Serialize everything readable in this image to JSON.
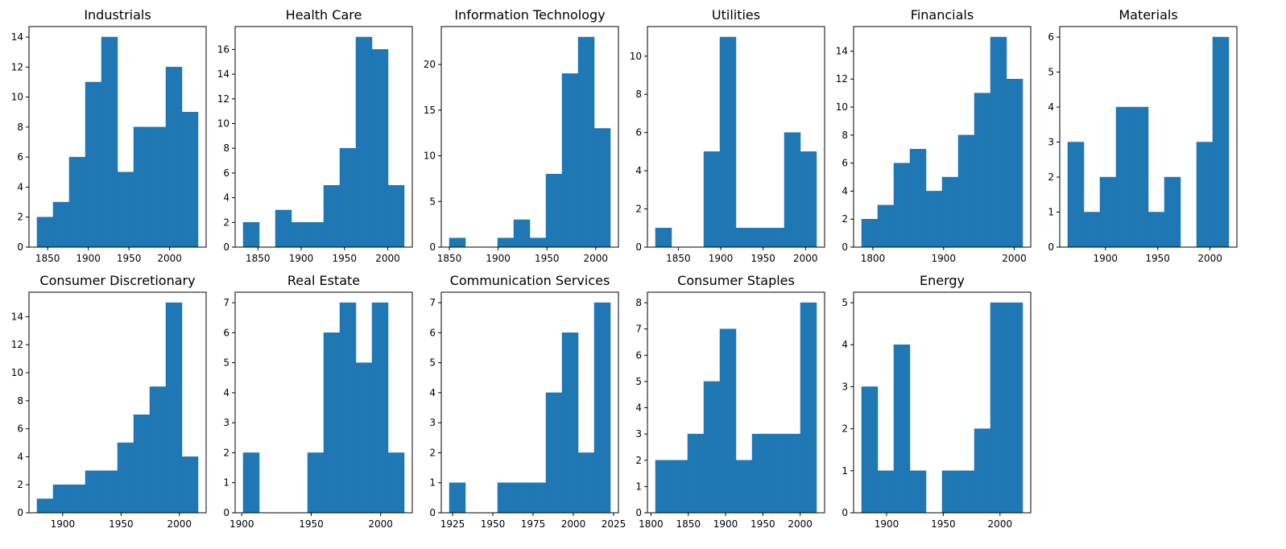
{
  "chart_data": [
    {
      "type": "bar",
      "title": "Industrials",
      "xlabel": "",
      "ylabel": "",
      "color": "#1f77b4",
      "bin_edges": [
        1837,
        1856.8,
        1876.6,
        1896.4,
        1916.2,
        1936,
        1955.8,
        1975.6,
        1995.4,
        2015.2,
        2035
      ],
      "values": [
        2,
        3,
        6,
        11,
        14,
        5,
        8,
        8,
        12,
        9
      ],
      "xlim": [
        1827.1,
        2044.9
      ],
      "ylim": [
        0,
        14.7
      ],
      "xticks": [
        1850,
        1900,
        1950,
        2000
      ],
      "yticks": [
        0,
        2,
        4,
        6,
        8,
        10,
        12,
        14
      ]
    },
    {
      "type": "bar",
      "title": "Health Care",
      "xlabel": "",
      "ylabel": "",
      "color": "#1f77b4",
      "bin_edges": [
        1833,
        1851.6,
        1870.2,
        1888.8,
        1907.4,
        1926,
        1944.6,
        1963.2,
        1981.8,
        2000.4,
        2019
      ],
      "values": [
        2,
        0,
        3,
        2,
        2,
        5,
        8,
        17,
        16,
        5
      ],
      "xlim": [
        1823.7,
        2028.3
      ],
      "ylim": [
        0,
        17.85
      ],
      "xticks": [
        1850,
        1900,
        1950,
        2000
      ],
      "yticks": [
        0,
        2,
        4,
        6,
        8,
        10,
        12,
        14,
        16
      ]
    },
    {
      "type": "bar",
      "title": "Information Technology",
      "xlabel": "",
      "ylabel": "",
      "color": "#1f77b4",
      "bin_edges": [
        1850,
        1866.5,
        1883,
        1899.5,
        1916,
        1932.5,
        1949,
        1965.5,
        1982,
        1998.5,
        2015
      ],
      "values": [
        1,
        0,
        0,
        1,
        3,
        1,
        8,
        19,
        23,
        13
      ],
      "xlim": [
        1841.75,
        2023.25
      ],
      "ylim": [
        0,
        24.15
      ],
      "xticks": [
        1850,
        1900,
        1950,
        2000
      ],
      "yticks": [
        0,
        5,
        10,
        15,
        20
      ]
    },
    {
      "type": "bar",
      "title": "Utilities",
      "xlabel": "",
      "ylabel": "",
      "color": "#1f77b4",
      "bin_edges": [
        1823,
        1842,
        1861,
        1880,
        1899,
        1918,
        1937,
        1956,
        1975,
        1994,
        2013
      ],
      "values": [
        1,
        0,
        0,
        5,
        11,
        1,
        1,
        1,
        6,
        5
      ],
      "xlim": [
        1813.5,
        2022.5
      ],
      "ylim": [
        0,
        11.55
      ],
      "xticks": [
        1850,
        1900,
        1950,
        2000
      ],
      "yticks": [
        0,
        2,
        4,
        6,
        8,
        10
      ]
    },
    {
      "type": "bar",
      "title": "Financials",
      "xlabel": "",
      "ylabel": "",
      "color": "#1f77b4",
      "bin_edges": [
        1784,
        1806.8,
        1829.6,
        1852.4,
        1875.2,
        1898,
        1920.8,
        1943.6,
        1966.4,
        1989.2,
        2012
      ],
      "values": [
        2,
        3,
        6,
        7,
        4,
        5,
        8,
        11,
        15,
        12
      ],
      "xlim": [
        1772.6,
        2023.4
      ],
      "ylim": [
        0,
        15.75
      ],
      "xticks": [
        1800,
        1900,
        2000
      ],
      "yticks": [
        0,
        2,
        4,
        6,
        8,
        10,
        12,
        14
      ]
    },
    {
      "type": "bar",
      "title": "Materials",
      "xlabel": "",
      "ylabel": "",
      "color": "#1f77b4",
      "bin_edges": [
        1864,
        1879.4,
        1894.8,
        1910.2,
        1925.6,
        1941,
        1956.4,
        1971.8,
        1987.2,
        2002.6,
        2018
      ],
      "values": [
        3,
        1,
        2,
        4,
        4,
        1,
        2,
        0,
        3,
        6
      ],
      "xlim": [
        1856.3,
        2025.7
      ],
      "ylim": [
        0,
        6.3
      ],
      "xticks": [
        1900,
        1950,
        2000
      ],
      "yticks": [
        0,
        1,
        2,
        3,
        4,
        5,
        6
      ]
    },
    {
      "type": "bar",
      "title": "Consumer Discretionary",
      "xlabel": "",
      "ylabel": "",
      "color": "#1f77b4",
      "bin_edges": [
        1878,
        1891.8,
        1905.6,
        1919.4,
        1933.2,
        1947,
        1960.8,
        1974.6,
        1988.4,
        2002.2,
        2016
      ],
      "values": [
        1,
        2,
        2,
        3,
        3,
        5,
        7,
        9,
        15,
        4
      ],
      "xlim": [
        1871.1,
        2022.9
      ],
      "ylim": [
        0,
        15.75
      ],
      "xticks": [
        1900,
        1950,
        2000
      ],
      "yticks": [
        0,
        2,
        4,
        6,
        8,
        10,
        12,
        14
      ]
    },
    {
      "type": "bar",
      "title": "Real Estate",
      "xlabel": "",
      "ylabel": "",
      "color": "#1f77b4",
      "bin_edges": [
        1901,
        1912.6,
        1924.2,
        1935.8,
        1947.4,
        1959,
        1970.6,
        1982.2,
        1993.8,
        2005.4,
        2017
      ],
      "values": [
        2,
        0,
        0,
        0,
        2,
        6,
        7,
        5,
        7,
        2
      ],
      "xlim": [
        1895.2,
        2022.8
      ],
      "ylim": [
        0,
        7.35
      ],
      "xticks": [
        1900,
        1950,
        2000
      ],
      "yticks": [
        0,
        1,
        2,
        3,
        4,
        5,
        6,
        7
      ]
    },
    {
      "type": "bar",
      "title": "Communication Services",
      "xlabel": "",
      "ylabel": "",
      "color": "#1f77b4",
      "bin_edges": [
        1923,
        1933,
        1943,
        1953,
        1963,
        1973,
        1983,
        1993,
        2003,
        2013,
        2023
      ],
      "values": [
        1,
        0,
        0,
        1,
        1,
        1,
        4,
        6,
        2,
        7
      ],
      "xlim": [
        1918,
        2028
      ],
      "ylim": [
        0,
        7.35
      ],
      "xticks": [
        1925,
        1950,
        1975,
        2000,
        2025
      ],
      "yticks": [
        0,
        1,
        2,
        3,
        4,
        5,
        6,
        7
      ]
    },
    {
      "type": "bar",
      "title": "Consumer Staples",
      "xlabel": "",
      "ylabel": "",
      "color": "#1f77b4",
      "bin_edges": [
        1806,
        1827.6,
        1849.2,
        1870.8,
        1892.4,
        1914,
        1935.6,
        1957.2,
        1978.8,
        2000.4,
        2022
      ],
      "values": [
        2,
        2,
        3,
        5,
        7,
        2,
        3,
        3,
        3,
        8
      ],
      "xlim": [
        1795.2,
        2032.8
      ],
      "ylim": [
        0,
        8.4
      ],
      "xticks": [
        1800,
        1850,
        1900,
        1950,
        2000
      ],
      "yticks": [
        0,
        1,
        2,
        3,
        4,
        5,
        6,
        7,
        8
      ]
    },
    {
      "type": "bar",
      "title": "Energy",
      "xlabel": "",
      "ylabel": "",
      "color": "#1f77b4",
      "bin_edges": [
        1878,
        1892.2,
        1906.4,
        1920.6,
        1934.8,
        1949,
        1963.2,
        1977.4,
        1991.6,
        2005.8,
        2020
      ],
      "values": [
        3,
        1,
        4,
        1,
        0,
        1,
        1,
        2,
        5,
        5
      ],
      "xlim": [
        1870.9,
        2027.1
      ],
      "ylim": [
        0,
        5.25
      ],
      "xticks": [
        1900,
        1950,
        2000
      ],
      "yticks": [
        0,
        1,
        2,
        3,
        4,
        5
      ]
    }
  ]
}
